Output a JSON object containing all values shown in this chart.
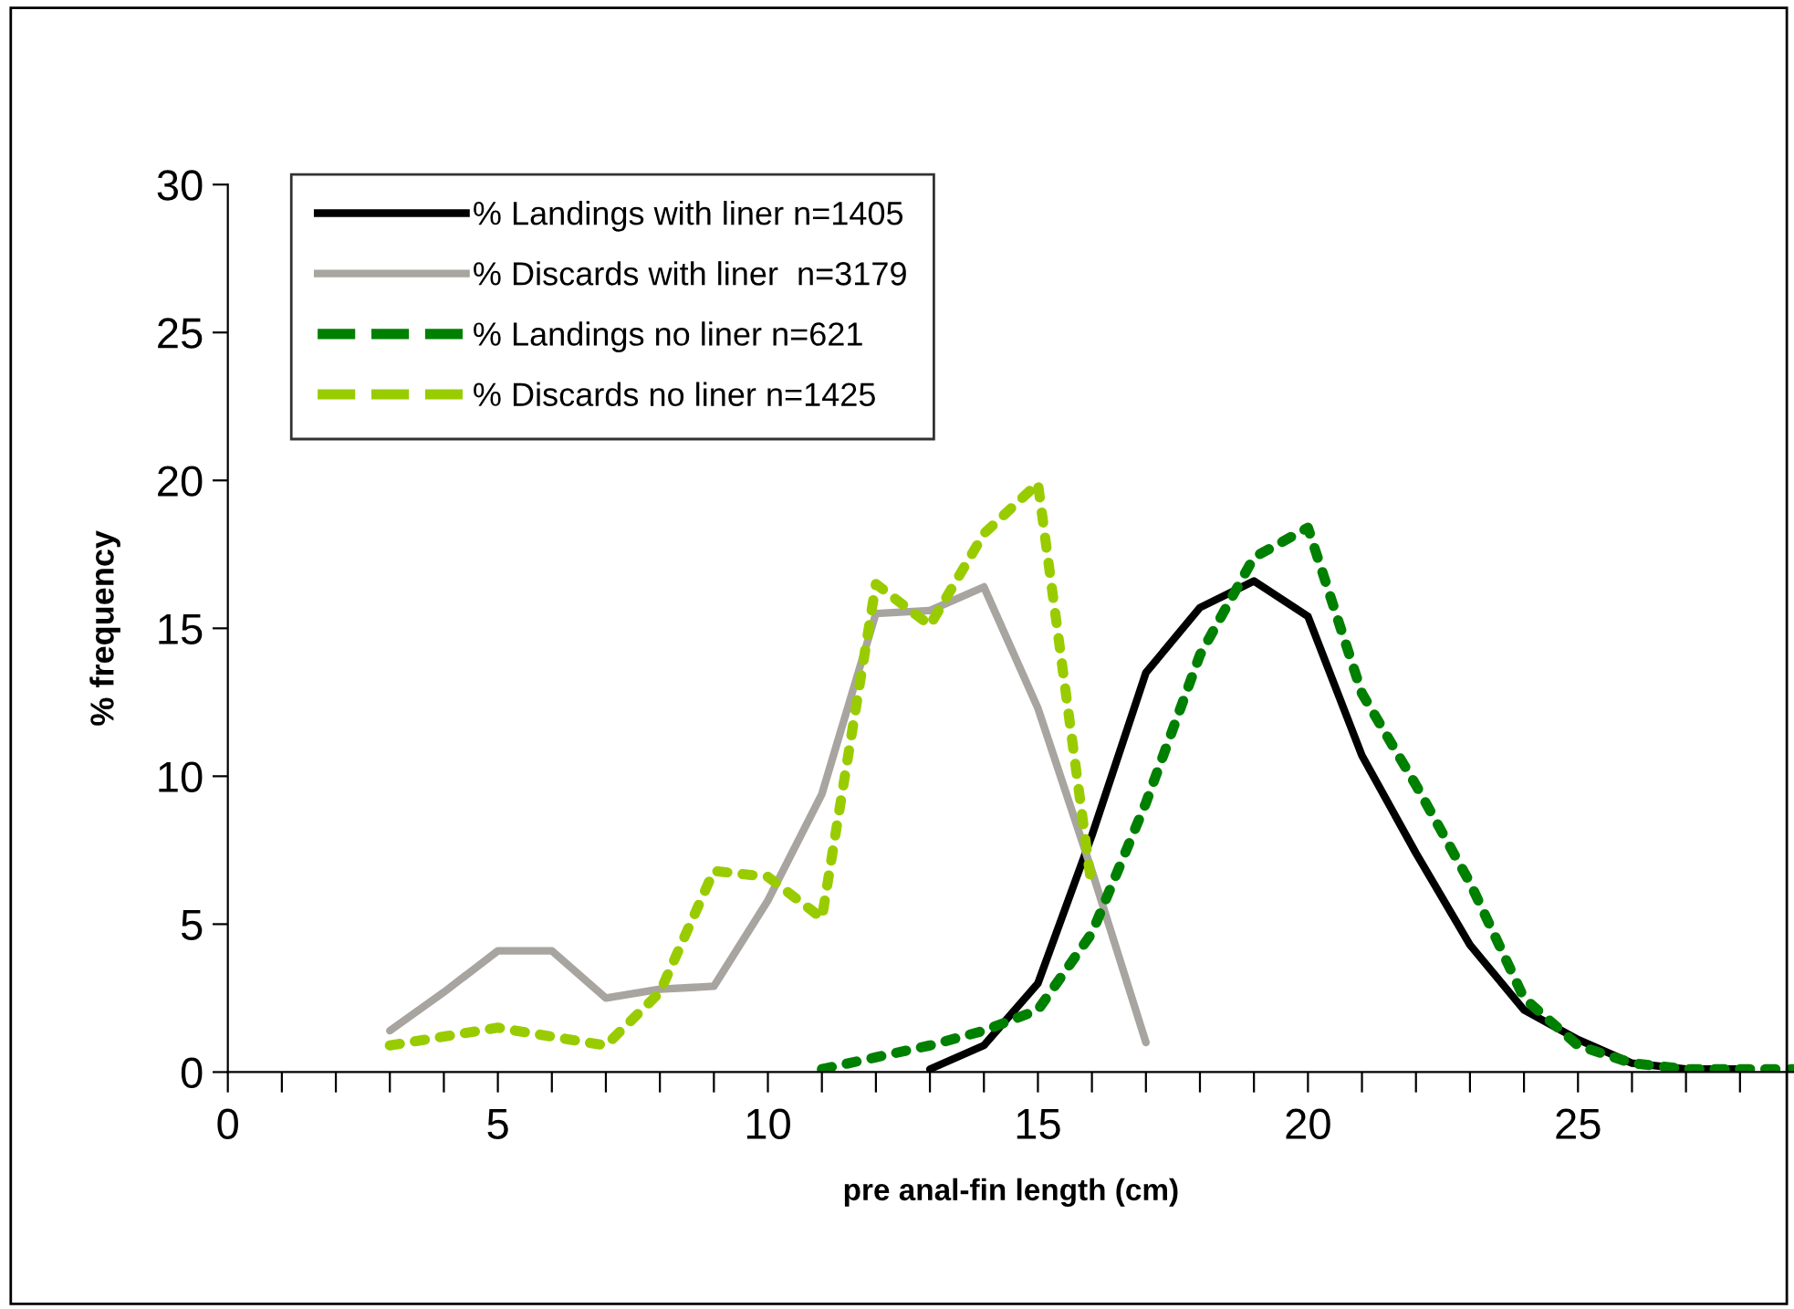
{
  "chart_data": {
    "type": "line",
    "xlabel": "pre anal-fin length (cm)",
    "ylabel": "% frequency",
    "xlim": [
      0,
      29
    ],
    "ylim": [
      0,
      30
    ],
    "xticks": [
      0,
      {
        "value": 1,
        "label": null
      },
      {
        "value": 2,
        "label": null
      },
      {
        "value": 3,
        "label": null
      },
      {
        "value": 4,
        "label": null
      },
      5,
      {
        "value": 6,
        "label": null
      },
      {
        "value": 7,
        "label": null
      },
      {
        "value": 8,
        "label": null
      },
      {
        "value": 9,
        "label": null
      },
      10,
      {
        "value": 11,
        "label": null
      },
      {
        "value": 12,
        "label": null
      },
      {
        "value": 13,
        "label": null
      },
      {
        "value": 14,
        "label": null
      },
      15,
      {
        "value": 16,
        "label": null
      },
      {
        "value": 17,
        "label": null
      },
      {
        "value": 18,
        "label": null
      },
      {
        "value": 19,
        "label": null
      },
      20,
      {
        "value": 21,
        "label": null
      },
      {
        "value": 22,
        "label": null
      },
      {
        "value": 23,
        "label": null
      },
      {
        "value": 24,
        "label": null
      },
      25,
      {
        "value": 26,
        "label": null
      },
      {
        "value": 27,
        "label": null
      },
      {
        "value": 28,
        "label": null
      }
    ],
    "yticks": [
      0,
      5,
      10,
      15,
      20,
      25,
      30
    ],
    "grid": false,
    "legend": "top left",
    "marker": "none",
    "series": [
      {
        "name": "% Landings with liner n=1405",
        "color": "#000000",
        "line_style": "solid",
        "x": [
          13,
          14,
          15,
          16,
          17,
          18,
          19,
          20,
          21,
          22,
          23,
          24,
          25,
          26,
          27,
          28
        ],
        "values": [
          0.1,
          0.9,
          3.0,
          8.0,
          13.5,
          15.7,
          16.6,
          15.4,
          10.7,
          7.4,
          4.3,
          2.1,
          1.1,
          0.3,
          0.1,
          0.1
        ]
      },
      {
        "name": "% Discards with liner  n=3179",
        "color": "#a8a4a0",
        "line_style": "solid",
        "x": [
          3,
          4,
          5,
          6,
          7,
          8,
          9,
          10,
          11,
          12,
          13,
          14,
          15,
          16,
          17
        ],
        "values": [
          1.4,
          2.7,
          4.1,
          4.1,
          2.5,
          2.8,
          2.9,
          5.8,
          9.4,
          15.5,
          15.6,
          16.4,
          12.3,
          6.8,
          1.0
        ]
      },
      {
        "name": "% Landings no liner n=621",
        "color": "#008000",
        "line_style": "dashed",
        "x": [
          11,
          12,
          13,
          14,
          15,
          16,
          17,
          18,
          19,
          20,
          21,
          22,
          23,
          24,
          25,
          26,
          27,
          28,
          29
        ],
        "values": [
          0.1,
          0.5,
          0.9,
          1.4,
          2.1,
          4.7,
          9.1,
          14.1,
          17.4,
          18.4,
          12.8,
          9.7,
          6.4,
          2.5,
          0.9,
          0.3,
          0.1,
          0.1,
          0.1
        ]
      },
      {
        "name": "% Discards no liner n=1425",
        "color": "#99cc00",
        "line_style": "dashed",
        "x": [
          3,
          4,
          5,
          6,
          7,
          8,
          9,
          10,
          11,
          12,
          13,
          14,
          15,
          16
        ],
        "values": [
          0.9,
          1.2,
          1.5,
          1.2,
          0.9,
          2.7,
          6.8,
          6.6,
          5.2,
          16.5,
          15.1,
          18.2,
          19.9,
          6.2
        ]
      }
    ]
  }
}
